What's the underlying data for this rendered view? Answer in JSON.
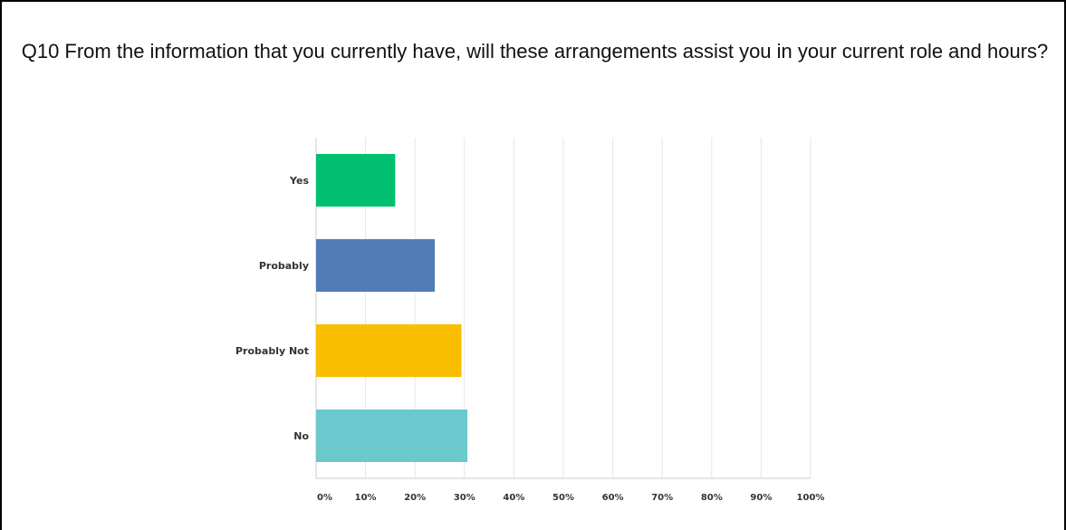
{
  "chart_data": {
    "type": "bar",
    "orientation": "horizontal",
    "title": "Q10 From the information that you currently have, will these arrangements assist you in your current role and hours?",
    "categories": [
      "Yes",
      "Probably",
      "Probably Not",
      "No"
    ],
    "values": [
      16,
      24,
      29.4,
      30.6
    ],
    "colors": [
      "#00BF6F",
      "#507CB6",
      "#F9BE00",
      "#6BC8CD"
    ],
    "xlim": [
      0,
      100
    ],
    "ticks": [
      "0%",
      "10%",
      "20%",
      "30%",
      "40%",
      "50%",
      "60%",
      "70%",
      "80%",
      "90%",
      "100%"
    ],
    "grid": true,
    "legend": "none"
  }
}
